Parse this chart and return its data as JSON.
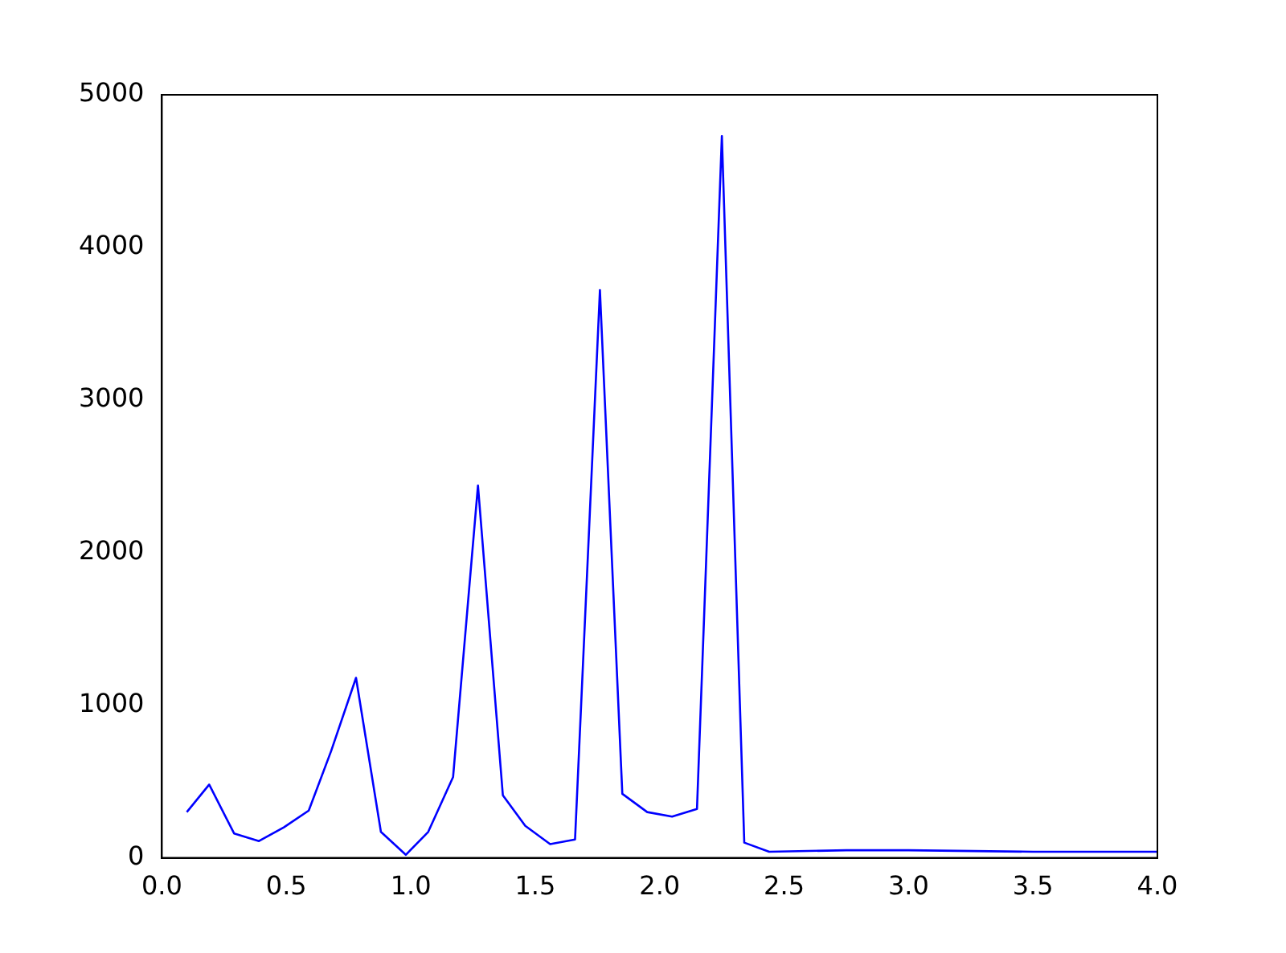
{
  "chart_data": {
    "type": "line",
    "x": [
      0.1,
      0.19,
      0.29,
      0.39,
      0.49,
      0.59,
      0.68,
      0.78,
      0.88,
      0.98,
      1.07,
      1.17,
      1.27,
      1.37,
      1.46,
      1.56,
      1.66,
      1.76,
      1.85,
      1.95,
      2.05,
      2.15,
      2.25,
      2.34,
      2.44,
      2.75,
      3.0,
      3.5,
      4.0
    ],
    "series": [
      {
        "color": "#0000ff",
        "values": [
          300,
          480,
          160,
          110,
          200,
          310,
          700,
          1180,
          170,
          20,
          170,
          530,
          2440,
          410,
          210,
          90,
          120,
          3720,
          420,
          300,
          270,
          320,
          4730,
          100,
          40,
          50,
          50,
          40,
          40
        ]
      }
    ],
    "xlim": [
      0,
      4
    ],
    "xticks": [
      {
        "value": 0,
        "label": "0.0"
      },
      0.5,
      {
        "value": 1,
        "label": "1.0"
      },
      1.5,
      {
        "value": 2,
        "label": "2.0"
      },
      2.5,
      {
        "value": 3,
        "label": "3.0"
      },
      3.5,
      {
        "value": 4,
        "label": "4.0"
      }
    ],
    "ylim": [
      0,
      5000
    ],
    "yticks": [
      0,
      1000,
      2000,
      3000,
      4000,
      5000
    ],
    "grid": false,
    "legend": false,
    "marker": "none",
    "line_style": "solid"
  }
}
